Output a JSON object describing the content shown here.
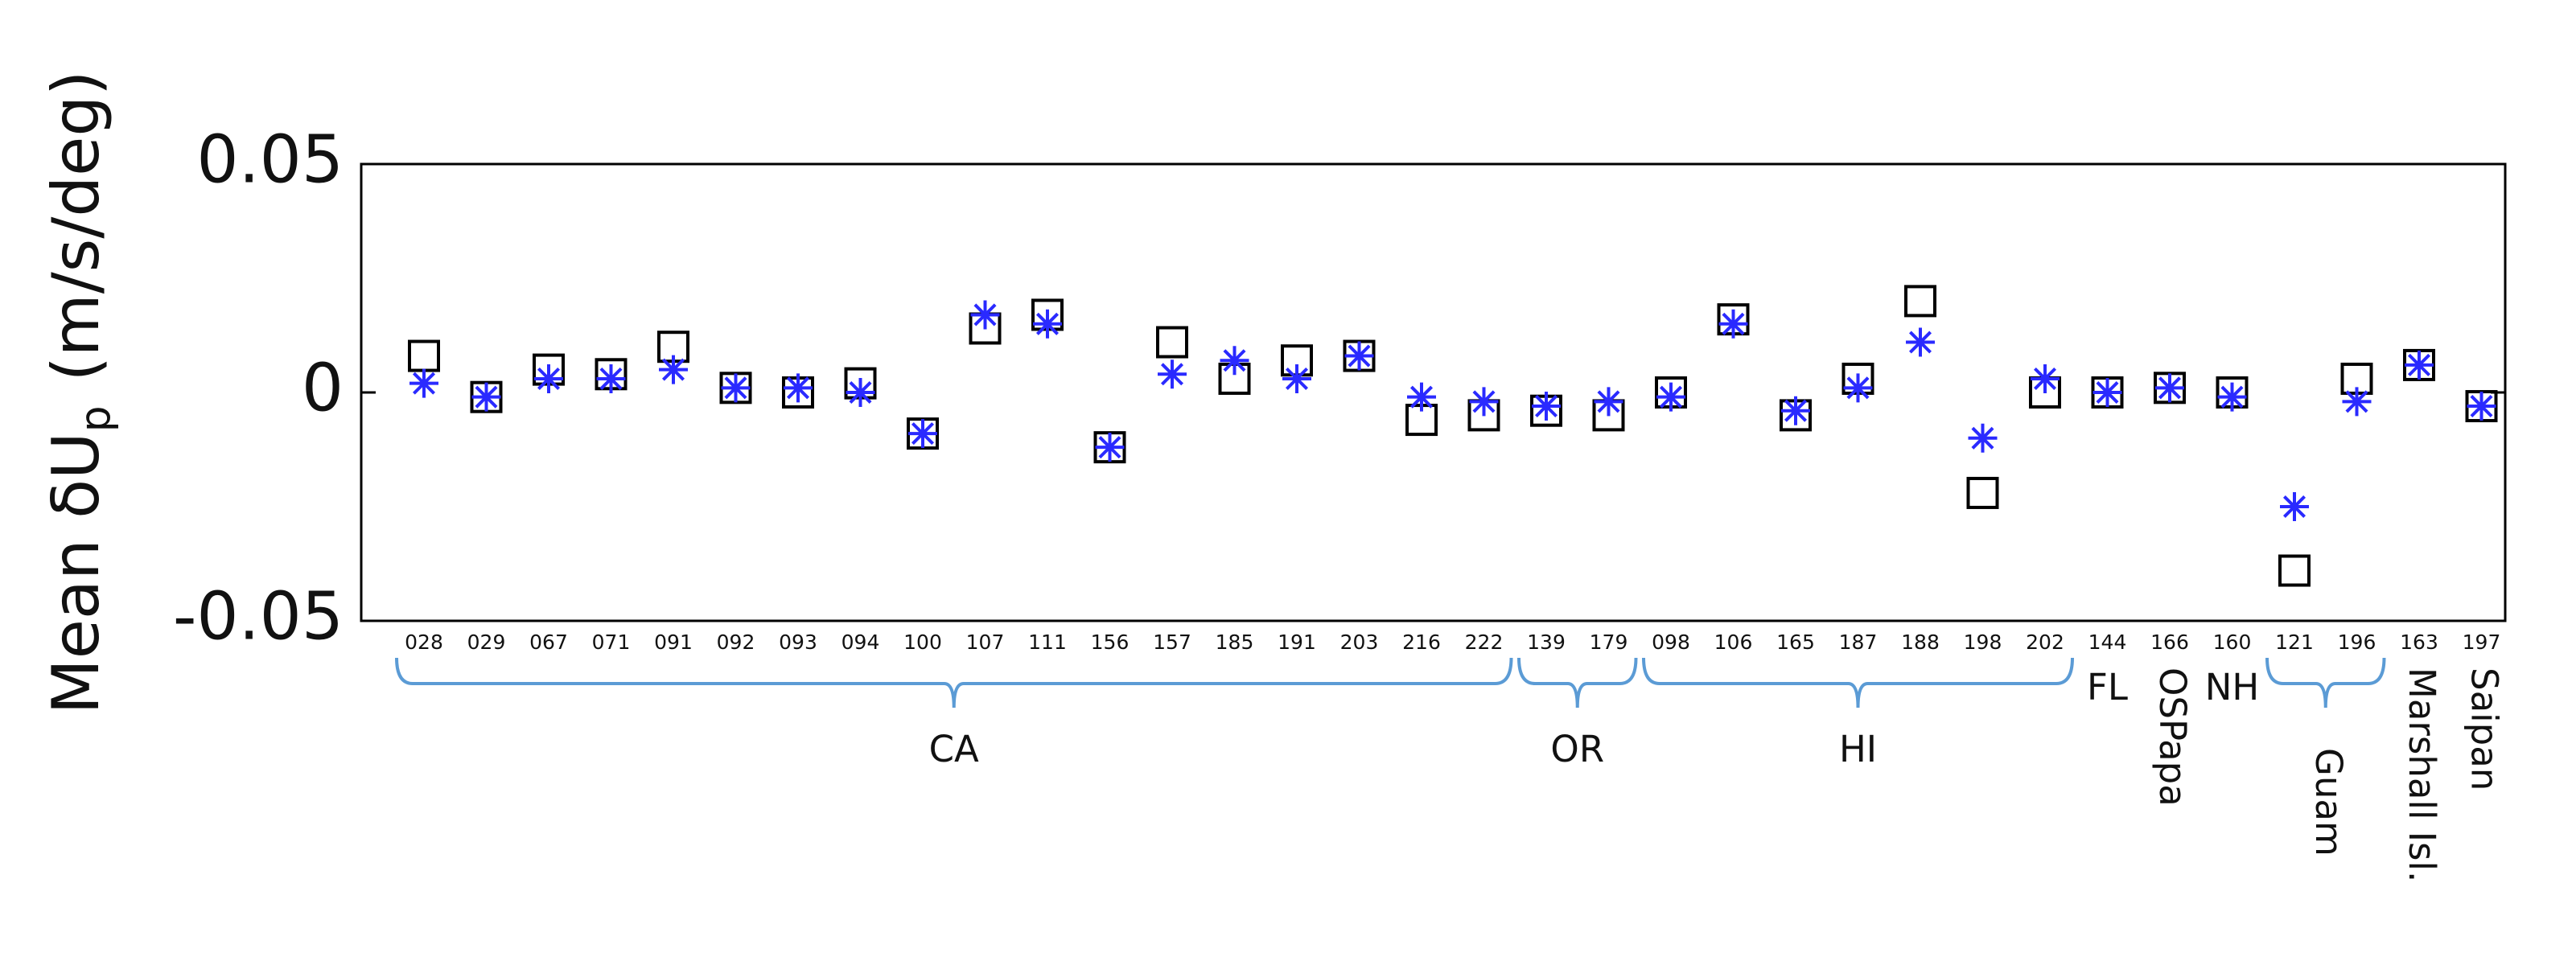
{
  "chart_data": {
    "type": "scatter",
    "ylabel": {
      "main": "Mean δU",
      "sub": "p",
      "unit": "(m/s/deg)"
    },
    "groups": [
      {
        "label": "CA",
        "categories": [
          "028",
          "029",
          "067",
          "071",
          "091",
          "092",
          "093",
          "094",
          "100",
          "107",
          "111",
          "156",
          "157",
          "185",
          "191",
          "203",
          "216",
          "222"
        ]
      },
      {
        "label": "OR",
        "categories": [
          "139",
          "179"
        ]
      },
      {
        "label": "HI",
        "categories": [
          "098",
          "106",
          "165",
          "187",
          "188",
          "198",
          "202"
        ]
      },
      {
        "label": "FL",
        "categories": [
          "144"
        ]
      },
      {
        "label": "OSPapa",
        "categories": [
          "166"
        ]
      },
      {
        "label": "NH",
        "categories": [
          "160"
        ]
      },
      {
        "label": "Guam",
        "categories": [
          "121",
          "196"
        ]
      },
      {
        "label": "Marshall Isl.",
        "categories": [
          "163"
        ]
      },
      {
        "label": "Saipan",
        "categories": [
          "197"
        ]
      }
    ],
    "series": [
      {
        "marker": "square",
        "color": "#000000",
        "values": [
          0.008,
          -0.001,
          0.005,
          0.004,
          0.01,
          0.001,
          0,
          0.002,
          -0.009,
          0.014,
          0.017,
          -0.012,
          0.011,
          0.003,
          0.007,
          0.008,
          -0.006,
          -0.005,
          -0.004,
          -0.005,
          0,
          0.016,
          -0.005,
          0.003,
          0.02,
          -0.022,
          0,
          0,
          0.001,
          0,
          -0.039,
          0.003,
          0.006,
          -0.003
        ]
      },
      {
        "marker": "asterisk",
        "color": "#2a2aff",
        "values": [
          0.002,
          -0.001,
          0.003,
          0.003,
          0.005,
          0.001,
          0.001,
          0,
          -0.009,
          0.017,
          0.015,
          -0.012,
          0.004,
          0.007,
          0.003,
          0.008,
          -0.001,
          -0.002,
          -0.003,
          -0.002,
          -0.001,
          0.015,
          -0.004,
          0.001,
          0.011,
          -0.01,
          0.003,
          0,
          0.001,
          -0.001,
          -0.025,
          -0.002,
          0.006,
          -0.003
        ]
      }
    ],
    "ylim": [
      -0.05,
      0.05
    ],
    "yticks": [
      -0.05,
      0,
      0.05
    ],
    "grid": false,
    "brace_color": "#5b9bd5"
  }
}
